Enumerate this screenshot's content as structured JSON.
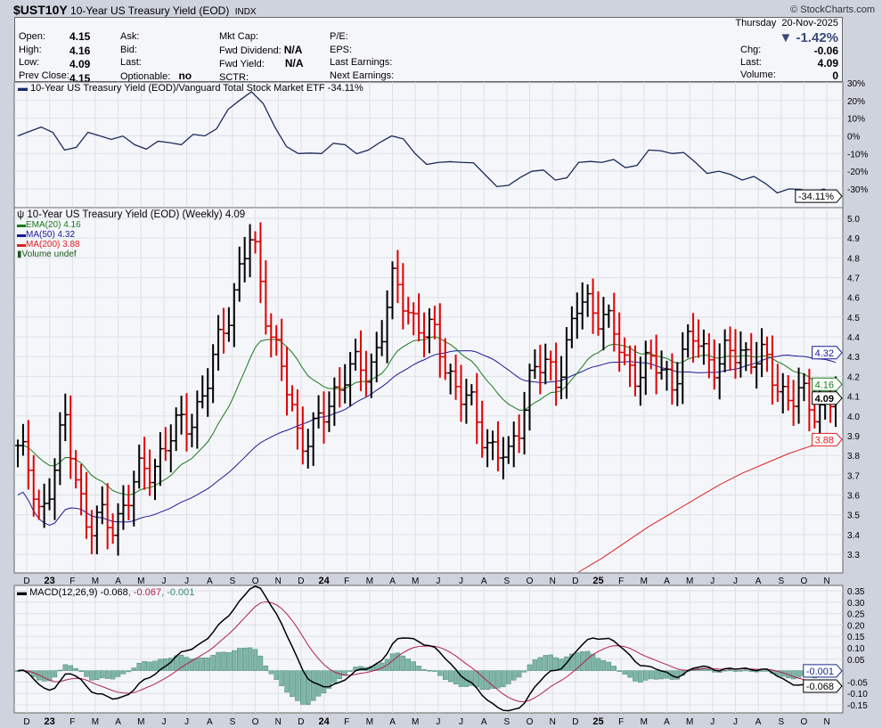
{
  "header": {
    "symbol": "$UST10Y",
    "name": "10-Year US Treasury Yield (EOD)",
    "exchange": "INDX",
    "copyright": "© StockCharts.com"
  },
  "quote": {
    "open_label": "Open:",
    "open": "4.15",
    "high_label": "High:",
    "high": "4.16",
    "low_label": "Low:",
    "low": "4.09",
    "prev_label": "Prev Close:",
    "prev": "4.15",
    "ask_label": "Ask:",
    "bid_label": "Bid:",
    "last_label": "Last:",
    "optionable_label": "Optionable:",
    "optionable": "no",
    "mktcap_label": "Mkt Cap:",
    "fwddiv_label": "Fwd Dividend:",
    "fwddiv": "N/A",
    "fwdyield_label": "Fwd Yield:",
    "fwdyield": "N/A",
    "sctr_label": "SCTR:",
    "pe_label": "P/E:",
    "eps_label": "EPS:",
    "lastearn_label": "Last Earnings:",
    "nextearn_label": "Next Earnings:",
    "day": "Thursday",
    "date": "20-Nov-2025",
    "change_pct": "-1.42%",
    "chg_label": "Chg:",
    "chg": "-0.06",
    "last2_label": "Last:",
    "last": "4.09",
    "volume_label": "Volume:",
    "volume": "0"
  },
  "colors": {
    "ema20": "#1a7a1a",
    "ma50": "#1a1a9a",
    "ma200": "#e02020",
    "up": "#000000",
    "down": "#e00000",
    "macd": "#000000",
    "signal": "#b0204a",
    "hist": "#7fb5a5"
  },
  "chart_data": [
    {
      "type": "line",
      "title": "10-Year US Treasury Yield (EOD)/Vanguard Total Stock Market ETF -34.11%",
      "ylabel": "%",
      "ylim": [
        -35,
        32
      ],
      "yticks": [
        "30%",
        "20%",
        "10%",
        "0%",
        "-10%",
        "-20%",
        "-30%"
      ],
      "ytick_values": [
        30,
        20,
        10,
        0,
        -10,
        -20,
        -30
      ],
      "last_tag": "-34.11%",
      "last_value": -34.11,
      "values": [
        0,
        5,
        -8,
        2,
        -2,
        -5,
        -3,
        -5,
        0,
        15,
        25,
        5,
        -10,
        -10,
        -5,
        -8,
        0,
        -10,
        -15,
        -15,
        -22,
        -28,
        -20,
        -25,
        -15,
        -15,
        -18,
        -8,
        -10,
        -15,
        -20,
        -25,
        -27,
        -30,
        -32,
        -34.11
      ]
    },
    {
      "type": "ohlc",
      "title": "10-Year US Treasury Yield (EOD) (Weekly) 4.09",
      "frequency": "weekly",
      "ylim": [
        3.2,
        5.05
      ],
      "yticks": [
        "5.0",
        "4.9",
        "4.8",
        "4.7",
        "4.6",
        "4.5",
        "4.4",
        "4.3",
        "4.2",
        "4.1",
        "4.0",
        "3.9",
        "3.8",
        "3.7",
        "3.6",
        "3.5",
        "3.4",
        "3.3"
      ],
      "ytick_values": [
        5.0,
        4.9,
        4.8,
        4.7,
        4.6,
        4.5,
        4.4,
        4.3,
        4.2,
        4.1,
        4.0,
        3.9,
        3.8,
        3.7,
        3.6,
        3.5,
        3.4,
        3.3
      ],
      "monthly_close": [
        3.85,
        3.5,
        3.95,
        3.45,
        3.45,
        3.65,
        3.8,
        3.95,
        4.1,
        4.55,
        4.9,
        4.35,
        3.9,
        3.95,
        4.25,
        4.2,
        4.65,
        4.5,
        4.35,
        4.1,
        3.9,
        3.75,
        4.25,
        4.2,
        4.55,
        4.55,
        4.25,
        4.25,
        4.2,
        4.4,
        4.25,
        4.35,
        4.25,
        4.1,
        4.05,
        4.09
      ],
      "ma200_monthly": [
        null,
        null,
        null,
        null,
        null,
        null,
        null,
        null,
        null,
        null,
        null,
        null,
        null,
        null,
        null,
        null,
        null,
        null,
        null,
        null,
        null,
        null,
        null,
        null,
        3.2,
        3.28,
        3.36,
        3.44,
        3.51,
        3.58,
        3.65,
        3.71,
        3.76,
        3.81,
        3.85,
        3.88
      ],
      "legend": [
        {
          "label": "EMA(20) 4.16",
          "tag": "4.16",
          "value": 4.16
        },
        {
          "label": "MA(50) 4.32",
          "tag": "4.32",
          "value": 4.32
        },
        {
          "label": "MA(200) 3.88",
          "tag": "3.88",
          "value": 3.88
        },
        {
          "label": "Volume undef"
        }
      ],
      "last_tag": "4.09",
      "last_value": 4.09
    },
    {
      "type": "macd",
      "title": "MACD(12,26,9)",
      "macd_label": "-0.068",
      "signal_label": "-0.067",
      "hist_label": "-0.001",
      "ylim": [
        -0.17,
        0.37
      ],
      "yticks": [
        "0.35",
        "0.30",
        "0.25",
        "0.20",
        "0.15",
        "0.10",
        "0.05",
        "-0.05",
        "-0.10",
        "-0.15"
      ],
      "ytick_values": [
        0.35,
        0.3,
        0.25,
        0.2,
        0.15,
        0.1,
        0.05,
        -0.05,
        -0.1,
        -0.15
      ],
      "last_macd": -0.068,
      "last_hist": -0.001
    }
  ],
  "xaxis": {
    "labels": [
      "D",
      "23",
      "F",
      "M",
      "A",
      "M",
      "J",
      "J",
      "A",
      "S",
      "O",
      "N",
      "D",
      "24",
      "F",
      "M",
      "A",
      "M",
      "J",
      "J",
      "A",
      "S",
      "O",
      "N",
      "D",
      "25",
      "F",
      "M",
      "A",
      "M",
      "J",
      "J",
      "A",
      "S",
      "O",
      "N"
    ]
  }
}
